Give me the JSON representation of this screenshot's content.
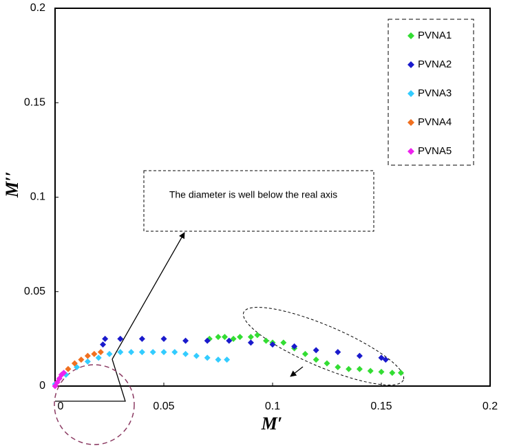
{
  "chart_data": {
    "type": "scatter",
    "x_label": "M′",
    "y_label": "M′′",
    "annotation": "The diameter is well below the real axis",
    "xlim": [
      0,
      0.2
    ],
    "ylim": [
      0,
      0.2
    ],
    "xticks": [
      0,
      0.05,
      0.1,
      0.15,
      0.2
    ],
    "yticks": [
      0,
      0.05,
      0.1,
      0.15,
      0.2
    ],
    "grid": false,
    "legend": "upper right",
    "series": [
      {
        "name": "PVNA1",
        "color": "#33dd33",
        "x": [
          0.071,
          0.075,
          0.078,
          0.082,
          0.085,
          0.09,
          0.093,
          0.097,
          0.1,
          0.105,
          0.11,
          0.115,
          0.12,
          0.125,
          0.13,
          0.135,
          0.14,
          0.145,
          0.15,
          0.155,
          0.159
        ],
        "values": [
          0.025,
          0.026,
          0.026,
          0.025,
          0.026,
          0.026,
          0.027,
          0.024,
          0.023,
          0.023,
          0.02,
          0.017,
          0.014,
          0.012,
          0.01,
          0.009,
          0.009,
          0.008,
          0.0075,
          0.007,
          0.007
        ]
      },
      {
        "name": "PVNA2",
        "color": "#1a1acc",
        "x": [
          0.022,
          0.023,
          0.03,
          0.04,
          0.05,
          0.06,
          0.07,
          0.08,
          0.09,
          0.1,
          0.11,
          0.12,
          0.13,
          0.14,
          0.15,
          0.152
        ],
        "values": [
          0.022,
          0.025,
          0.025,
          0.025,
          0.025,
          0.024,
          0.024,
          0.024,
          0.023,
          0.022,
          0.021,
          0.019,
          0.018,
          0.016,
          0.015,
          0.014
        ]
      },
      {
        "name": "PVNA3",
        "color": "#33ccff",
        "x": [
          0,
          0.005,
          0.01,
          0.015,
          0.02,
          0.025,
          0.03,
          0.035,
          0.04,
          0.045,
          0.05,
          0.055,
          0.06,
          0.065,
          0.07,
          0.075,
          0.079
        ],
        "values": [
          0.001,
          0.006,
          0.01,
          0.013,
          0.015,
          0.017,
          0.018,
          0.018,
          0.018,
          0.018,
          0.018,
          0.018,
          0.017,
          0.016,
          0.015,
          0.014,
          0.014
        ]
      },
      {
        "name": "PVNA4",
        "color": "#f07020",
        "x": [
          0.001,
          0.003,
          0.006,
          0.009,
          0.012,
          0.015,
          0.018,
          0.021
        ],
        "values": [
          0.002,
          0.006,
          0.009,
          0.012,
          0.014,
          0.016,
          0.017,
          0.018
        ]
      },
      {
        "name": "PVNA5",
        "color": "#ee22ee",
        "x": [
          0,
          0.001,
          0.002,
          0.003,
          0.004
        ],
        "values": [
          0,
          0.002,
          0.004,
          0.006,
          0.007
        ]
      }
    ]
  }
}
